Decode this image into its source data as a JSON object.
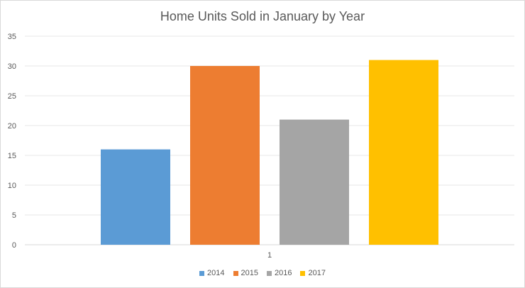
{
  "chart_data": {
    "type": "bar",
    "title": "Home Units Sold in January by Year",
    "categories": [
      "1"
    ],
    "series": [
      {
        "name": "2014",
        "values": [
          16
        ],
        "color": "#5b9bd5"
      },
      {
        "name": "2015",
        "values": [
          30
        ],
        "color": "#ed7d31"
      },
      {
        "name": "2016",
        "values": [
          21
        ],
        "color": "#a5a5a5"
      },
      {
        "name": "2017",
        "values": [
          31
        ],
        "color": "#ffc000"
      }
    ],
    "ylim": [
      0,
      35
    ],
    "yticks": [
      0,
      5,
      10,
      15,
      20,
      25,
      30,
      35
    ],
    "grid": true,
    "legend": "bottom"
  }
}
